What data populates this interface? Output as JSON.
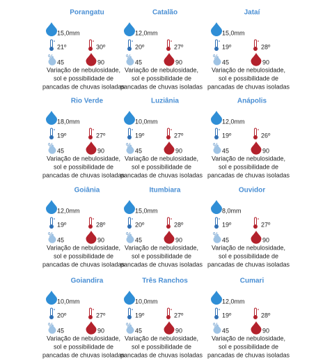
{
  "humidity_symbol": "%",
  "cities": [
    {
      "name": "Porangatu",
      "rain": "15,0mm",
      "tmin": "21º",
      "tmax": "30º",
      "humidity_min": "45",
      "humidity_max": "90",
      "description": [
        "Variação de nebulosidade,",
        "sol e possibilidade de",
        "pancadas de chuvas isoladas"
      ]
    },
    {
      "name": "Catalão",
      "rain": "12,0mm",
      "tmin": "20º",
      "tmax": "27º",
      "humidity_min": "45",
      "humidity_max": "90",
      "description": [
        "Variação de nebulosidade,",
        "sol e possibilidade de",
        "pancadas de chuvas isoladas"
      ]
    },
    {
      "name": "Jataí",
      "rain": "15,0mm",
      "tmin": "19º",
      "tmax": "28º",
      "humidity_min": "45",
      "humidity_max": "90",
      "description": [
        "Variação de nebulosidade,",
        "sol e possibilidade de",
        "pancadas de chuvas isoladas"
      ]
    },
    {
      "name": "Rio Verde",
      "rain": "18,0mm",
      "tmin": "19º",
      "tmax": "27º",
      "humidity_min": "45",
      "humidity_max": "90",
      "description": [
        "Variação de nebulosidade,",
        "sol e possibilidade de",
        "pancadas de chuvas isoladas"
      ]
    },
    {
      "name": "Luziânia",
      "rain": "10,0mm",
      "tmin": "19º",
      "tmax": "27º",
      "humidity_min": "45",
      "humidity_max": "90",
      "description": [
        "Variação de nebulosidade,",
        "sol e possibilidade de",
        "pancadas de chuvas isoladas"
      ]
    },
    {
      "name": "Anápolis",
      "rain": "12,0mm",
      "tmin": "19º",
      "tmax": "26º",
      "humidity_min": "45",
      "humidity_max": "90",
      "description": [
        "Variação de nebulosidade,",
        "sol e possibilidade de",
        "pancadas de chuvas isoladas"
      ]
    },
    {
      "name": "Goiânia",
      "rain": "12,0mm",
      "tmin": "19º",
      "tmax": "28º",
      "humidity_min": "45",
      "humidity_max": "90",
      "description": [
        "Variação de nebulosidade,",
        "sol e possibilidade de",
        "pancadas de chuvas isoladas"
      ]
    },
    {
      "name": "Itumbiara",
      "rain": "15,0mm",
      "tmin": "20º",
      "tmax": "28º",
      "humidity_min": "45",
      "humidity_max": "90",
      "description": [
        "Variação de nebulosidade,",
        "sol e possibilidade de",
        "pancadas de chuvas isoladas"
      ]
    },
    {
      "name": "Ouvidor",
      "rain": "8,0mm",
      "tmin": "19º",
      "tmax": "27º",
      "humidity_min": "45",
      "humidity_max": "90",
      "description": [
        "Variação de nebulosidade,",
        "sol e possibilidade de",
        "pancadas de chuvas isoladas"
      ]
    },
    {
      "name": "Goiandira",
      "rain": "10,0mm",
      "tmin": "20º",
      "tmax": "27º",
      "humidity_min": "45",
      "humidity_max": "90",
      "description": [
        "Variação de nebulosidade,",
        "sol e possibilidade de",
        "pancadas de chuvas isoladas"
      ]
    },
    {
      "name": "Três Ranchos",
      "rain": "10,0mm",
      "tmin": "19º",
      "tmax": "27º",
      "humidity_min": "45",
      "humidity_max": "90",
      "description": [
        "Variação de nebulosidade,",
        "sol e possibilidade de",
        "pancadas de chuvas isoladas"
      ]
    },
    {
      "name": "Cumari",
      "rain": "12,0mm",
      "tmin": "19º",
      "tmax": "28º",
      "humidity_min": "45",
      "humidity_max": "90",
      "description": [
        "Variação de nebulosidade,",
        "sol e possibilidade de",
        "pancadas de chuvas isoladas"
      ]
    }
  ]
}
